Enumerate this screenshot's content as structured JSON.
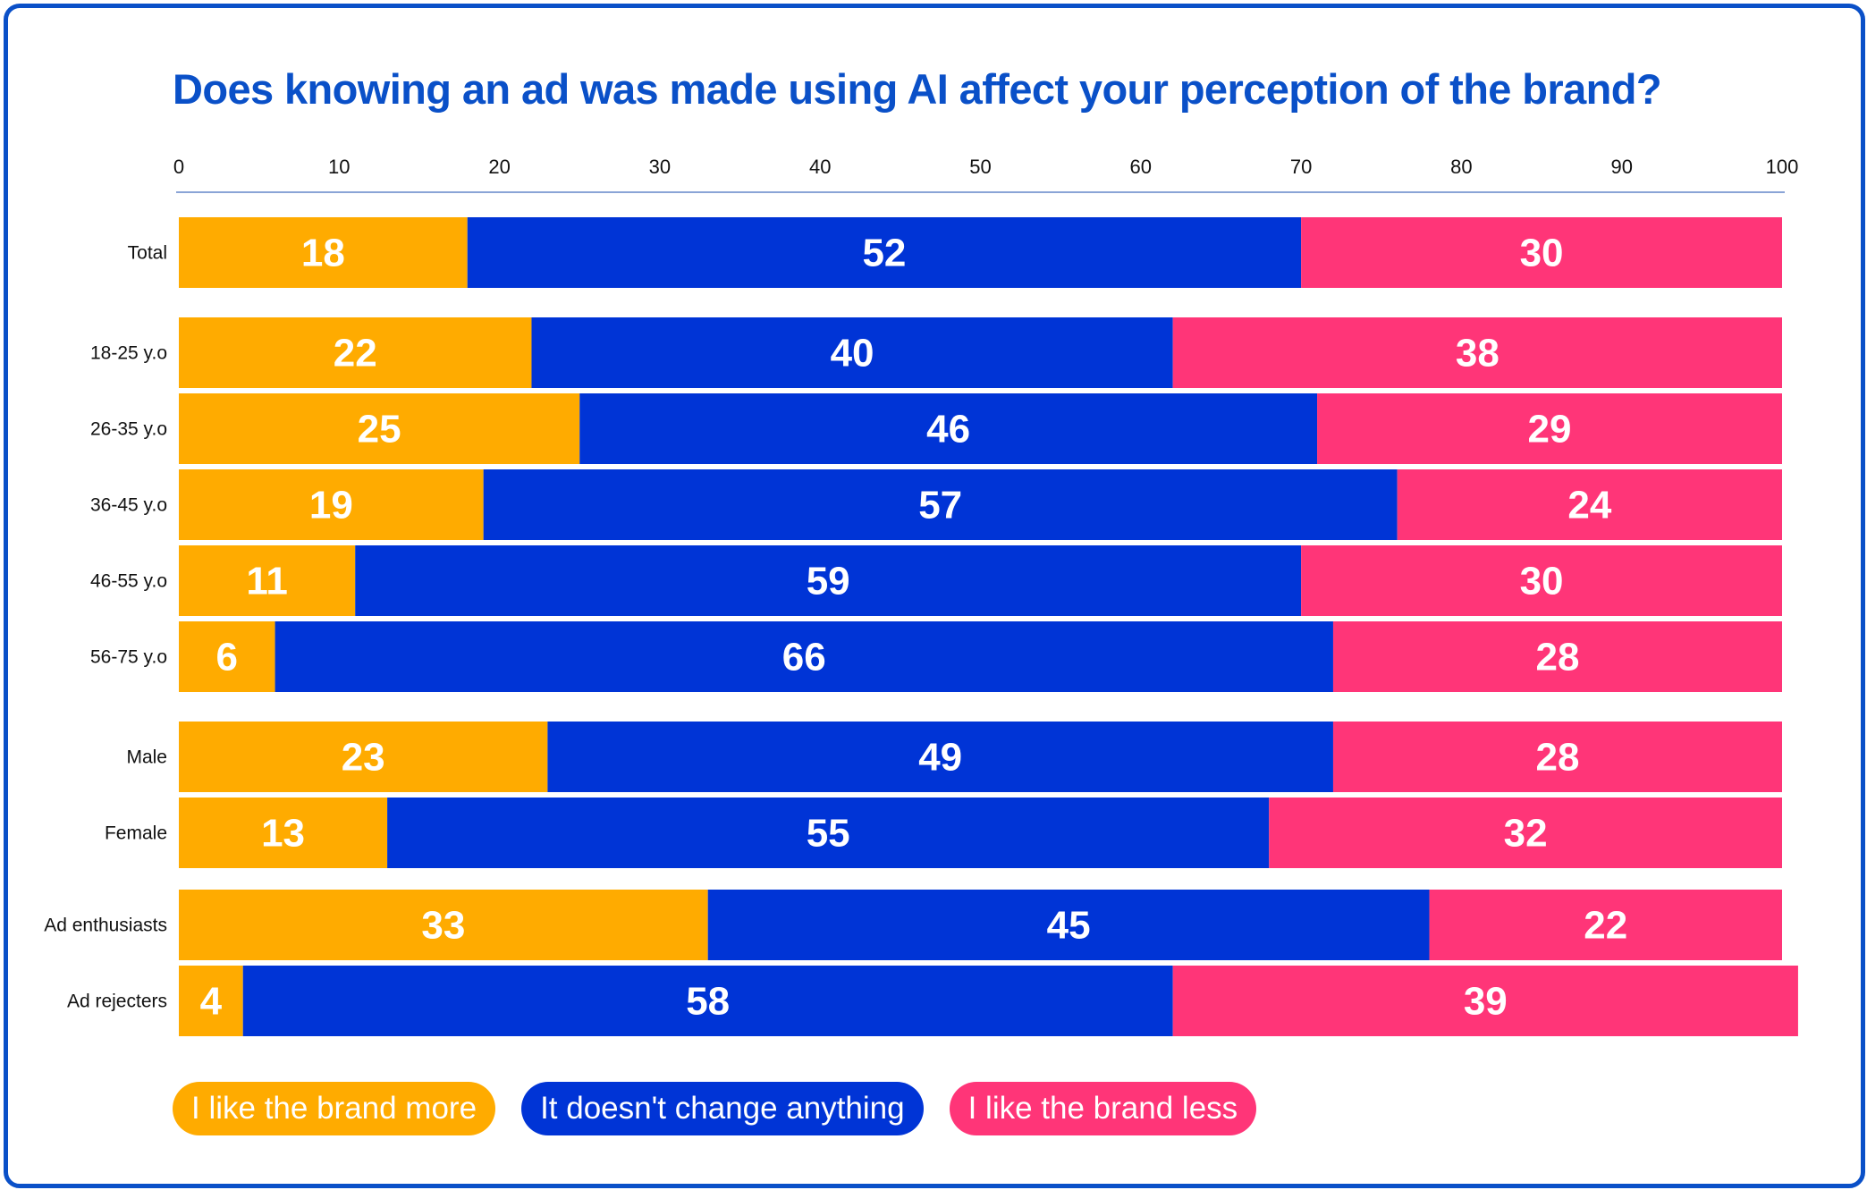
{
  "chart_data": {
    "type": "bar",
    "orientation": "horizontal",
    "stacked": true,
    "title": "Does knowing an ad was made using AI affect your perception of the brand?",
    "xlabel": "",
    "ylabel": "",
    "xlim": [
      0,
      100
    ],
    "x_ticks": [
      0,
      10,
      20,
      30,
      40,
      50,
      60,
      70,
      80,
      90,
      100
    ],
    "legend_position": "bottom-left",
    "categories": [
      "Total",
      "18-25 y.o",
      "26-35 y.o",
      "36-45 y.o",
      "46-55 y.o",
      "56-75 y.o",
      "Male",
      "Female",
      "Ad enthusiasts",
      "Ad rejecters"
    ],
    "series": [
      {
        "name": "I like the brand more",
        "color": "#ffab00",
        "values": [
          18,
          22,
          25,
          19,
          11,
          6,
          23,
          13,
          33,
          4
        ]
      },
      {
        "name": "It doesn't change anything",
        "color": "#0034d6",
        "values": [
          52,
          40,
          46,
          57,
          59,
          66,
          49,
          55,
          45,
          58
        ]
      },
      {
        "name": "I like the brand less",
        "color": "#ff3578",
        "values": [
          30,
          38,
          29,
          24,
          30,
          28,
          28,
          32,
          22,
          39
        ]
      }
    ]
  },
  "colors": {
    "frame": "#0a50c8",
    "title": "#0a50c8",
    "axis_line": "#8aa4d6"
  }
}
